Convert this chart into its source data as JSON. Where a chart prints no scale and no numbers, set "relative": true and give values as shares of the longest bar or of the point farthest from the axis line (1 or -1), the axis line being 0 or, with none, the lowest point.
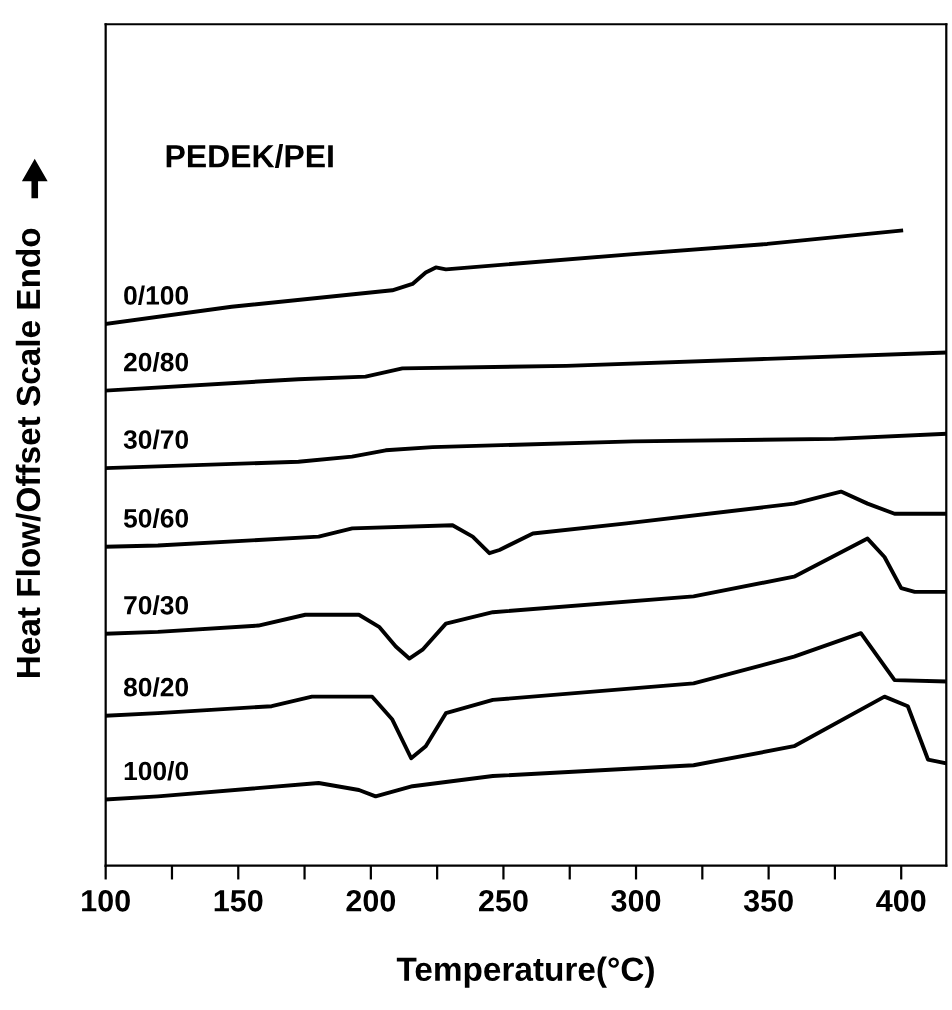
{
  "chart_data": {
    "type": "line",
    "relative": true,
    "xlabel": "Temperature(°C)",
    "ylabel": "Heat Flow/Offset Scale Endo",
    "legend_title": "PEDEK/PEI",
    "xlim": [
      100,
      417
    ],
    "xticks": [
      100,
      {
        "value": 125,
        "label": null
      },
      150,
      {
        "value": 175,
        "label": null
      },
      200,
      {
        "value": 225,
        "label": null
      },
      250,
      {
        "value": 275,
        "label": null
      },
      300,
      {
        "value": 325,
        "label": null
      },
      350,
      {
        "value": 375,
        "label": null
      },
      400
    ],
    "tick_labels": "x",
    "grid": false,
    "legend": false,
    "marker": "none",
    "line_style": "solid",
    "series": [
      {
        "name": "0/100",
        "color": "#000000",
        "x": [
          100,
          147.5,
          208.1,
          215.7,
          220.7,
          224.5,
          228.3,
          299.0,
          349.5,
          400
        ],
        "values": [
          0.853,
          0.88,
          0.906,
          0.916,
          0.934,
          0.942,
          0.939,
          0.963,
          0.979,
          1.0
        ]
      },
      {
        "name": "20/80",
        "color": "#000000",
        "x": [
          100,
          172.7,
          198.0,
          205.6,
          211.9,
          273.7,
          349.5,
          417
        ],
        "values": [
          0.748,
          0.766,
          0.77,
          0.777,
          0.783,
          0.787,
          0.798,
          0.808
        ]
      },
      {
        "name": "30/70",
        "color": "#000000",
        "x": [
          100,
          172.7,
          192.9,
          205.6,
          223.3,
          299.0,
          374.8,
          417
        ],
        "values": [
          0.626,
          0.636,
          0.644,
          0.654,
          0.659,
          0.668,
          0.672,
          0.68
        ]
      },
      {
        "name": "50/60",
        "color": "#000000",
        "x": [
          100,
          119.7,
          180.3,
          193.0,
          230.8,
          238.4,
          244.7,
          248.5,
          261.1,
          296.4,
          359.6,
          377.3,
          387.3,
          397.5,
          417
        ],
        "values": [
          0.502,
          0.504,
          0.518,
          0.531,
          0.536,
          0.518,
          0.492,
          0.497,
          0.523,
          0.539,
          0.57,
          0.589,
          0.57,
          0.554,
          0.554
        ]
      },
      {
        "name": "70/30",
        "color": "#000000",
        "x": [
          100,
          119.7,
          157.6,
          175.3,
          195.5,
          203.1,
          209.4,
          214.5,
          219.5,
          228.3,
          246.0,
          321.7,
          359.6,
          387.3,
          393.7,
          400,
          405.1,
          417
        ],
        "values": [
          0.365,
          0.368,
          0.378,
          0.395,
          0.395,
          0.376,
          0.345,
          0.326,
          0.34,
          0.381,
          0.399,
          0.424,
          0.455,
          0.515,
          0.486,
          0.437,
          0.431,
          0.431
        ]
      },
      {
        "name": "80/20",
        "color": "#000000",
        "x": [
          100,
          119.7,
          162.6,
          177.8,
          200.5,
          208.1,
          215.2,
          220.7,
          228.3,
          246,
          321.7,
          359.6,
          384.8,
          397.5,
          417
        ],
        "values": [
          0.236,
          0.24,
          0.251,
          0.266,
          0.266,
          0.23,
          0.169,
          0.188,
          0.24,
          0.261,
          0.287,
          0.329,
          0.366,
          0.292,
          0.29
        ]
      },
      {
        "name": "100/0",
        "color": "#000000",
        "x": [
          100,
          119.7,
          180.3,
          195.5,
          201.8,
          215.7,
          246,
          321.7,
          359.6,
          393.7,
          402.5,
          410.1,
          417
        ],
        "values": [
          0.104,
          0.109,
          0.13,
          0.119,
          0.109,
          0.125,
          0.141,
          0.158,
          0.188,
          0.266,
          0.251,
          0.167,
          0.161
        ]
      }
    ]
  }
}
